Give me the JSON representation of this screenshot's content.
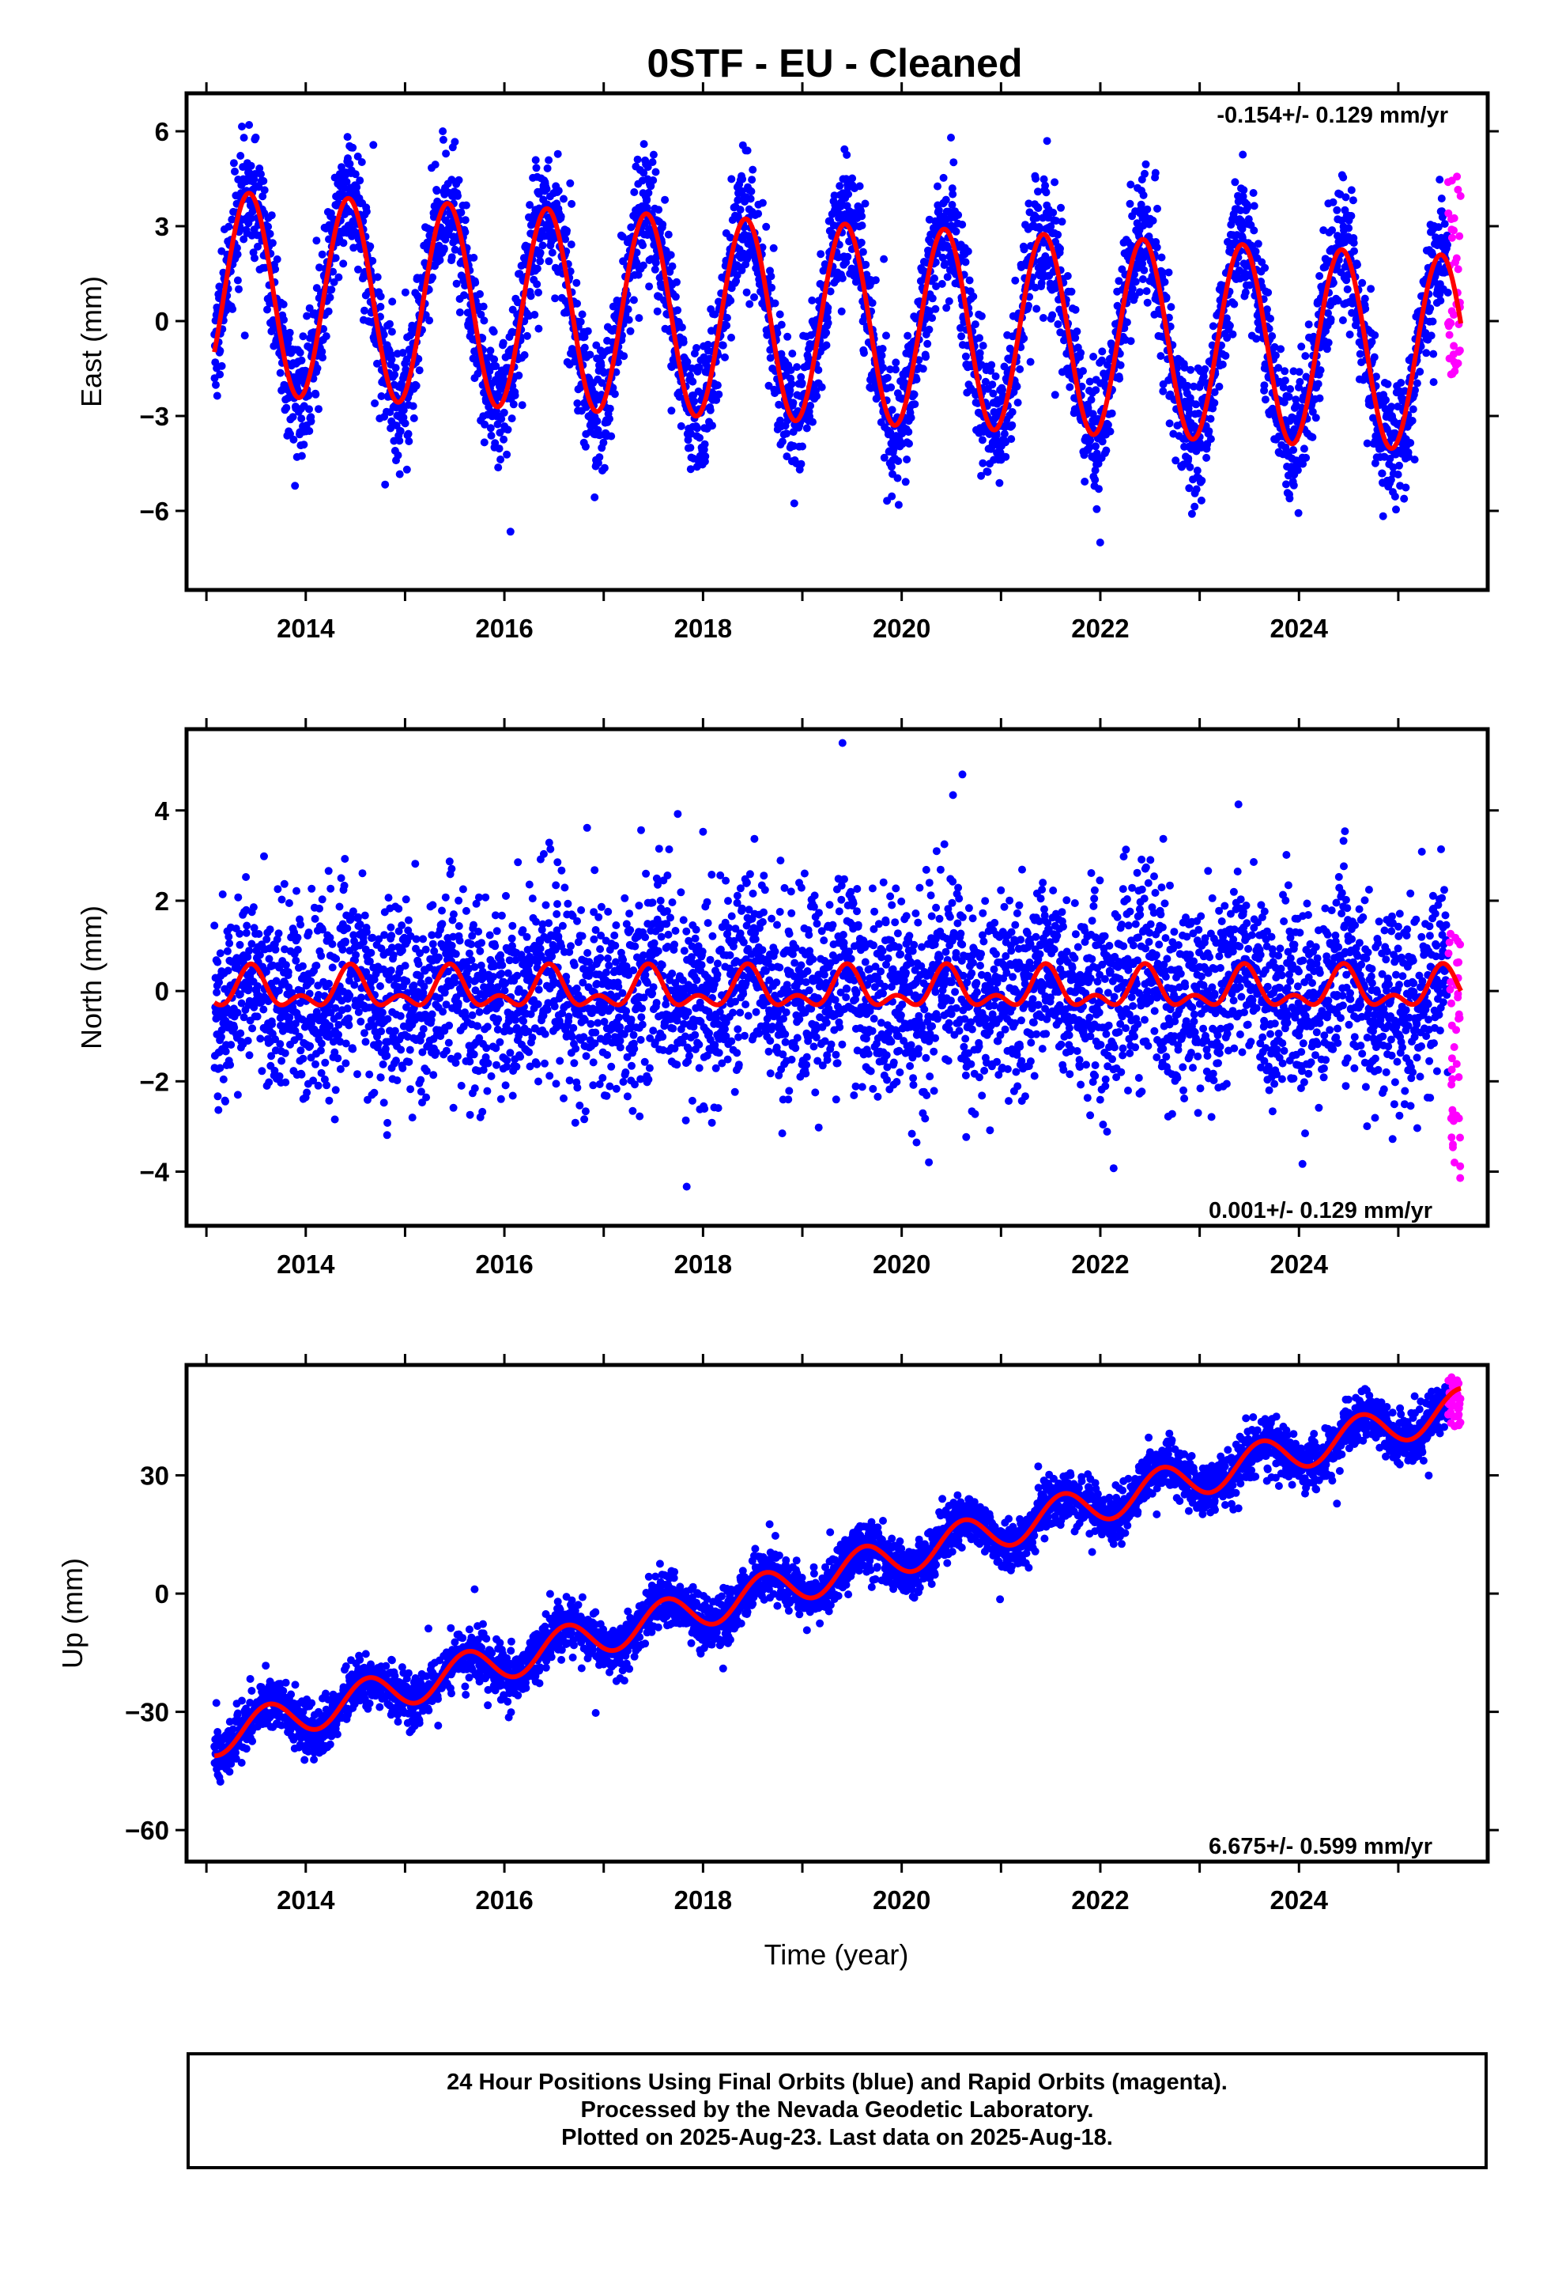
{
  "title": "0STF  - EU - Cleaned",
  "xaxis": {
    "label": "Time (year)",
    "ticks": [
      "2014",
      "2016",
      "2018",
      "2020",
      "2022",
      "2024"
    ]
  },
  "footer": {
    "line1": "24 Hour Positions Using Final Orbits (blue) and Rapid Orbits (magenta).",
    "line2": "Processed by the Nevada Geodetic Laboratory.",
    "line3": "Plotted on 2025-Aug-23. Last data on 2025-Aug-18."
  },
  "colors": {
    "final_orbits": "#0000ff",
    "rapid_orbits": "#ff00ff",
    "model_fit": "#ff0000",
    "axes": "#000000"
  },
  "chart_data": [
    {
      "type": "scatter",
      "panel": "east",
      "ylabel": "East (mm)",
      "xlim": [
        2012.8,
        2025.9
      ],
      "ylim": [
        -8.5,
        7.2
      ],
      "yticks": [
        -6,
        -3,
        0,
        3,
        6
      ],
      "ytick_labels": [
        "−6",
        "−3",
        "0",
        "3",
        "6"
      ],
      "rate_label": "-0.154+/- 0.129 mm/yr",
      "rate_position": "top-right",
      "series": [
        {
          "name": "Final Orbits",
          "color": "#0000ff",
          "marker": "dot",
          "start": 2013.08,
          "end": 2025.5,
          "model": {
            "offset": 0.9,
            "trend_mm_per_yr": -0.154,
            "amp_start": 3.2,
            "amp_end": 3.1,
            "phase_year": 2013.43
          },
          "scatter_sd": 1.0
        },
        {
          "name": "Rapid Orbits",
          "color": "#ff00ff",
          "marker": "dot",
          "start": 2025.5,
          "end": 2025.63,
          "values_range": [
            -1.7,
            4.8
          ]
        },
        {
          "name": "Model fit",
          "color": "#ff0000",
          "type": "line"
        }
      ]
    },
    {
      "type": "scatter",
      "panel": "north",
      "ylabel": "North (mm)",
      "xlim": [
        2012.8,
        2025.9
      ],
      "ylim": [
        -5.2,
        5.8
      ],
      "yticks": [
        -4,
        -2,
        0,
        2,
        4
      ],
      "ytick_labels": [
        "−4",
        "−2",
        "0",
        "2",
        "4"
      ],
      "rate_label": "0.001+/- 0.129 mm/yr",
      "rate_position": "bottom-right",
      "series": [
        {
          "name": "Final Orbits",
          "color": "#0000ff",
          "marker": "dot",
          "start": 2013.08,
          "end": 2025.5,
          "model": {
            "offset": 0.0,
            "trend_mm_per_yr": 0.001,
            "amp_start": 0.35,
            "amp_end": 0.35,
            "semiannual_amp": 0.25,
            "phase_year": 2013.45
          },
          "scatter_sd": 1.05
        },
        {
          "name": "Rapid Orbits",
          "color": "#ff00ff",
          "marker": "dot",
          "start": 2025.5,
          "end": 2025.63,
          "values_range": [
            -4.3,
            1.3
          ]
        },
        {
          "name": "Model fit",
          "color": "#ff0000",
          "type": "line"
        }
      ]
    },
    {
      "type": "scatter",
      "panel": "up",
      "ylabel": "Up (mm)",
      "xlim": [
        2012.8,
        2025.9
      ],
      "ylim": [
        -68,
        58
      ],
      "yticks": [
        -60,
        -30,
        0,
        30
      ],
      "ytick_labels": [
        "−60",
        "−30",
        "0",
        "30"
      ],
      "rate_label": "6.675+/- 0.599 mm/yr",
      "rate_position": "bottom-right",
      "series": [
        {
          "name": "Final Orbits",
          "color": "#0000ff",
          "marker": "dot",
          "start": 2013.08,
          "end": 2025.5,
          "model": {
            "offset": -36.5,
            "trend_mm_per_yr": 6.675,
            "amp_start": 4.8,
            "amp_end": 4.8,
            "phase_year": 2013.62
          },
          "scatter_sd": 3.2
        },
        {
          "name": "Rapid Orbits",
          "color": "#ff00ff",
          "marker": "dot",
          "start": 2025.5,
          "end": 2025.63,
          "values_range": [
            42,
            55
          ]
        },
        {
          "name": "Model fit",
          "color": "#ff0000",
          "type": "line"
        }
      ]
    }
  ]
}
